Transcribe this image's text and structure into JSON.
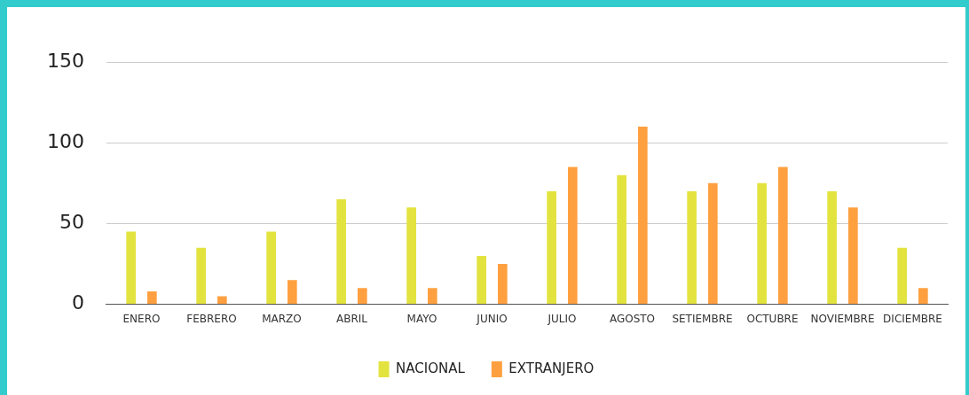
{
  "chart_data": {
    "type": "bar",
    "categories": [
      "ENERO",
      "FEBRERO",
      "MARZO",
      "ABRIL",
      "MAYO",
      "JUNIO",
      "JULIO",
      "AGOSTO",
      "SETIEMBRE",
      "OCTUBRE",
      "NOVIEMBRE",
      "DICIEMBRE"
    ],
    "series": [
      {
        "name": "NACIONAL",
        "color": "#e3e33f",
        "values": [
          45,
          35,
          45,
          65,
          60,
          30,
          70,
          80,
          70,
          75,
          70,
          35
        ]
      },
      {
        "name": "EXTRANJERO",
        "color": "#ffa040",
        "values": [
          8,
          5,
          15,
          10,
          10,
          25,
          85,
          110,
          75,
          85,
          60,
          10
        ]
      }
    ],
    "ylim": [
      0,
      150
    ],
    "yticks": [
      0,
      50,
      100,
      150
    ],
    "grid": "y",
    "legend": "bottom"
  }
}
